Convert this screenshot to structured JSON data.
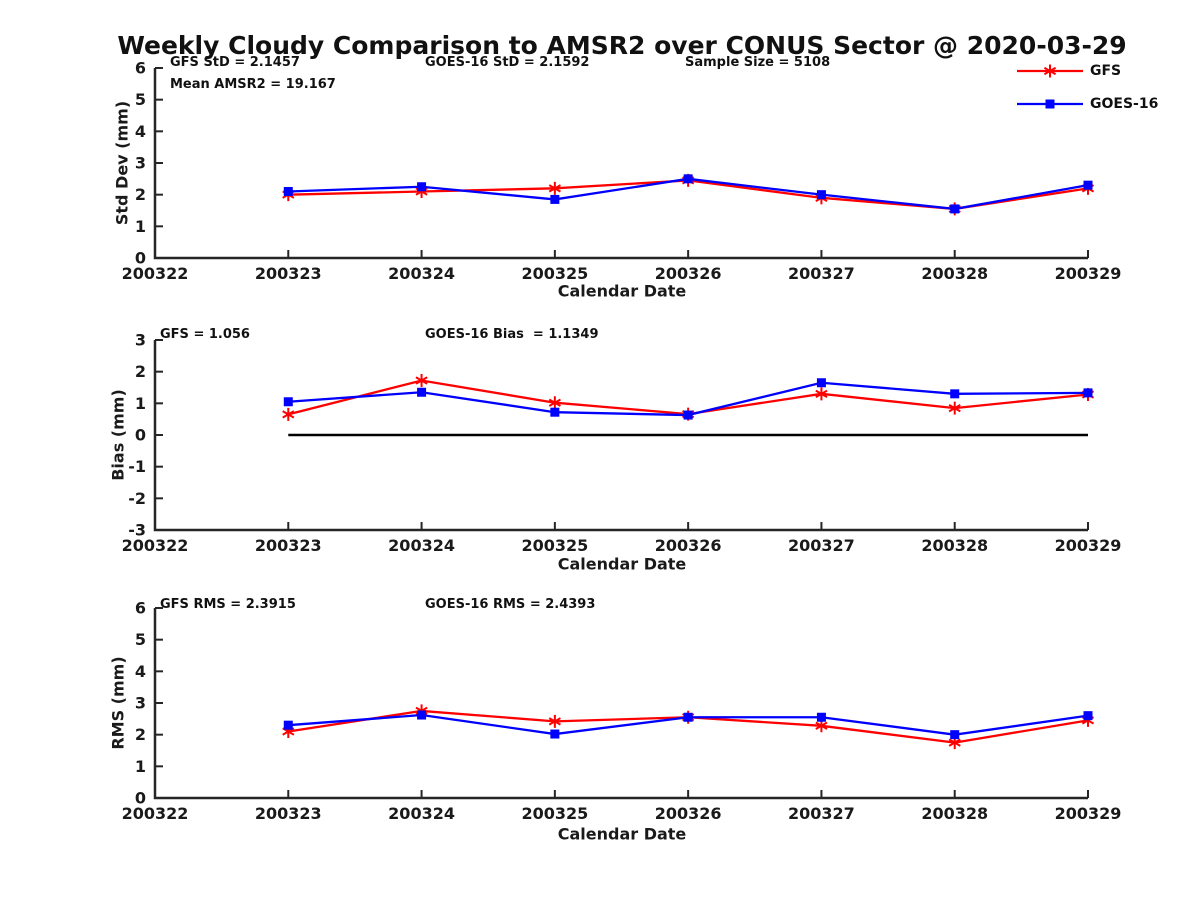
{
  "page": {
    "title": "Weekly Cloudy Comparison to AMSR2 over CONUS Sector @ 2020-03-29"
  },
  "colors": {
    "gfs": "#ff0000",
    "goes16": "#0000ff",
    "axis": "#262626",
    "text": "#1a1a1a",
    "zero_line": "#000000"
  },
  "x_axis": {
    "label": "Calendar Date",
    "ticks": [
      "200322",
      "200323",
      "200324",
      "200325",
      "200326",
      "200327",
      "200328",
      "200329"
    ]
  },
  "legend": {
    "items": [
      {
        "label": "GFS",
        "color": "#ff0000",
        "marker": "asterisk"
      },
      {
        "label": "GOES-16",
        "color": "#0000ff",
        "marker": "square"
      }
    ]
  },
  "chart_data": [
    {
      "type": "line",
      "name": "std-dev",
      "ylabel": "Std Dev (mm)",
      "ylim": [
        0,
        6
      ],
      "yticks": [
        0,
        1,
        2,
        3,
        4,
        5,
        6
      ],
      "x": [
        "200323",
        "200324",
        "200325",
        "200326",
        "200327",
        "200328",
        "200329"
      ],
      "series": [
        {
          "name": "GFS",
          "color": "#ff0000",
          "marker": "asterisk",
          "values": [
            2.0,
            2.1,
            2.2,
            2.45,
            1.9,
            1.55,
            2.2
          ]
        },
        {
          "name": "GOES-16",
          "color": "#0000ff",
          "marker": "square",
          "values": [
            2.1,
            2.25,
            1.85,
            2.5,
            2.0,
            1.55,
            2.3
          ]
        }
      ],
      "zero_line": false,
      "annotations": [
        {
          "text": "GFS StD = 2.1457"
        },
        {
          "text": "Mean AMSR2 = 19.167"
        },
        {
          "text": "GOES-16 StD = 2.1592"
        },
        {
          "text": "Sample Size = 5108"
        }
      ]
    },
    {
      "type": "line",
      "name": "bias",
      "ylabel": "Bias (mm)",
      "ylim": [
        -3,
        3
      ],
      "yticks": [
        -3,
        -2,
        -1,
        0,
        1,
        2,
        3
      ],
      "x": [
        "200323",
        "200324",
        "200325",
        "200326",
        "200327",
        "200328",
        "200329"
      ],
      "series": [
        {
          "name": "GFS",
          "color": "#ff0000",
          "marker": "asterisk",
          "values": [
            0.65,
            1.72,
            1.02,
            0.66,
            1.3,
            0.85,
            1.28
          ]
        },
        {
          "name": "GOES-16",
          "color": "#0000ff",
          "marker": "square",
          "values": [
            1.05,
            1.35,
            0.72,
            0.63,
            1.65,
            1.3,
            1.33
          ]
        }
      ],
      "zero_line": true,
      "annotations": [
        {
          "text": "GFS = 1.056"
        },
        {
          "text": "GOES-16 Bias  = 1.1349"
        }
      ]
    },
    {
      "type": "line",
      "name": "rms",
      "ylabel": "RMS (mm)",
      "ylim": [
        0,
        6
      ],
      "yticks": [
        0,
        1,
        2,
        3,
        4,
        5,
        6
      ],
      "x": [
        "200323",
        "200324",
        "200325",
        "200326",
        "200327",
        "200328",
        "200329"
      ],
      "series": [
        {
          "name": "GFS",
          "color": "#ff0000",
          "marker": "asterisk",
          "values": [
            2.1,
            2.75,
            2.42,
            2.55,
            2.28,
            1.75,
            2.45
          ]
        },
        {
          "name": "GOES-16",
          "color": "#0000ff",
          "marker": "square",
          "values": [
            2.3,
            2.62,
            2.02,
            2.55,
            2.55,
            2.0,
            2.6
          ]
        }
      ],
      "zero_line": false,
      "annotations": [
        {
          "text": "GFS RMS = 2.3915"
        },
        {
          "text": "GOES-16 RMS = 2.4393"
        }
      ]
    }
  ]
}
